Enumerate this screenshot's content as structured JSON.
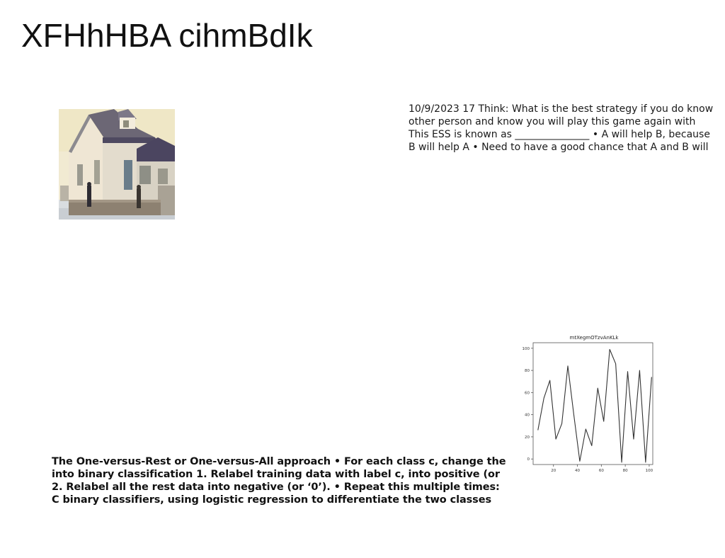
{
  "page": {
    "title": "XFHhHBA cihmBdIk"
  },
  "photo": {
    "description_icon": "house-photo"
  },
  "text_right": {
    "lines": [
      "10/9/2023 17 Think: What is the best strategy if you do know",
      "other person and know you will play this game again with",
      "This ESS is known as _______________ • A will help B, because",
      "B will help A • Need to have a good chance that A and B will"
    ]
  },
  "text_bottom": {
    "lines": [
      "The One-versus-Rest or One-versus-All approach • For each class c, change the",
      "into binary classification 1. Relabel training data with label c, into positive (or",
      "2. Relabel all the rest data into negative (or ‘0’). • Repeat this multiple times:",
      "C binary classifiers, using logistic regression to differentiate the two classes"
    ]
  },
  "chart_data": {
    "type": "line",
    "title": "mtXegmOTzvAnKLk",
    "xlabel": "",
    "ylabel": "",
    "xlim": [
      3,
      103
    ],
    "ylim": [
      -5,
      105
    ],
    "x_ticks": [
      20,
      40,
      60,
      80,
      100
    ],
    "y_ticks": [
      0,
      20,
      40,
      60,
      80,
      100
    ],
    "grid": false,
    "series": [
      {
        "x": [
          7,
          12,
          17,
          22,
          27,
          32,
          37,
          42,
          47,
          52,
          57,
          62,
          67,
          72,
          77,
          82,
          87,
          92,
          97,
          102
        ],
        "values": [
          26,
          55,
          71,
          18,
          32,
          84,
          40,
          -2,
          27,
          12,
          64,
          34,
          99,
          86,
          -3,
          79,
          18,
          80,
          -3,
          74
        ]
      }
    ],
    "line_color": "#333333"
  }
}
